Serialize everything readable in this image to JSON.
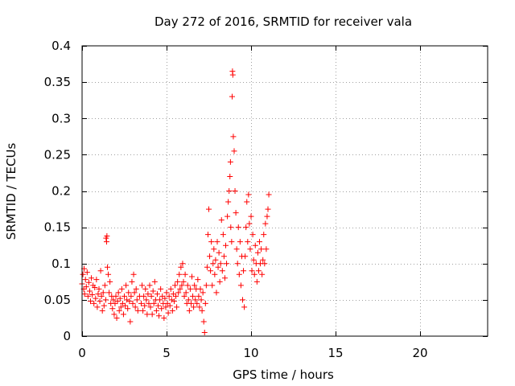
{
  "chart_data": {
    "type": "scatter",
    "title": "Day 272 of 2016, SRMTID for receiver vala",
    "xlabel": "GPS time / hours",
    "ylabel": "SRMTID / TECUs",
    "xlim": [
      0,
      24
    ],
    "ylim": [
      0,
      0.4
    ],
    "x_ticks": [
      0,
      5,
      10,
      15,
      20
    ],
    "x_tick_labels": [
      "0",
      "5",
      "10",
      "15",
      "20"
    ],
    "y_ticks": [
      0,
      0.05,
      0.1,
      0.15,
      0.2,
      0.25,
      0.3,
      0.35,
      0.4
    ],
    "y_tick_labels": [
      "0",
      "0.05",
      "0.1",
      "0.15",
      "0.2",
      "0.25",
      "0.3",
      "0.35",
      "0.4"
    ],
    "grid": true,
    "marker": "+",
    "color": "#ff0000",
    "series": [
      {
        "name": "SRMTID",
        "points": [
          [
            0.0,
            0.072
          ],
          [
            0.05,
            0.085
          ],
          [
            0.1,
            0.065
          ],
          [
            0.12,
            0.093
          ],
          [
            0.15,
            0.058
          ],
          [
            0.2,
            0.078
          ],
          [
            0.25,
            0.068
          ],
          [
            0.3,
            0.088
          ],
          [
            0.35,
            0.055
          ],
          [
            0.4,
            0.074
          ],
          [
            0.45,
            0.062
          ],
          [
            0.5,
            0.048
          ],
          [
            0.55,
            0.08
          ],
          [
            0.6,
            0.057
          ],
          [
            0.65,
            0.07
          ],
          [
            0.7,
            0.045
          ],
          [
            0.75,
            0.067
          ],
          [
            0.8,
            0.052
          ],
          [
            0.85,
            0.078
          ],
          [
            0.9,
            0.04
          ],
          [
            0.95,
            0.058
          ],
          [
            1.0,
            0.065
          ],
          [
            1.05,
            0.048
          ],
          [
            1.1,
            0.09
          ],
          [
            1.15,
            0.055
          ],
          [
            1.2,
            0.035
          ],
          [
            1.25,
            0.06
          ],
          [
            1.3,
            0.042
          ],
          [
            1.35,
            0.07
          ],
          [
            1.4,
            0.05
          ],
          [
            1.42,
            0.135
          ],
          [
            1.45,
            0.13
          ],
          [
            1.47,
            0.138
          ],
          [
            1.5,
            0.095
          ],
          [
            1.55,
            0.085
          ],
          [
            1.6,
            0.06
          ],
          [
            1.65,
            0.075
          ],
          [
            1.7,
            0.045
          ],
          [
            1.75,
            0.055
          ],
          [
            1.8,
            0.038
          ],
          [
            1.85,
            0.05
          ],
          [
            1.9,
            0.03
          ],
          [
            1.95,
            0.045
          ],
          [
            2.0,
            0.055
          ],
          [
            2.05,
            0.025
          ],
          [
            2.1,
            0.048
          ],
          [
            2.15,
            0.06
          ],
          [
            2.2,
            0.035
          ],
          [
            2.25,
            0.052
          ],
          [
            2.3,
            0.04
          ],
          [
            2.35,
            0.065
          ],
          [
            2.4,
            0.045
          ],
          [
            2.45,
            0.03
          ],
          [
            2.5,
            0.055
          ],
          [
            2.55,
            0.042
          ],
          [
            2.6,
            0.07
          ],
          [
            2.65,
            0.05
          ],
          [
            2.7,
            0.038
          ],
          [
            2.75,
            0.06
          ],
          [
            2.8,
            0.048
          ],
          [
            2.85,
            0.02
          ],
          [
            2.9,
            0.055
          ],
          [
            2.95,
            0.075
          ],
          [
            3.0,
            0.045
          ],
          [
            3.05,
            0.085
          ],
          [
            3.1,
            0.06
          ],
          [
            3.15,
            0.04
          ],
          [
            3.2,
            0.065
          ],
          [
            3.25,
            0.05
          ],
          [
            3.3,
            0.035
          ],
          [
            3.4,
            0.055
          ],
          [
            3.5,
            0.045
          ],
          [
            3.55,
            0.07
          ],
          [
            3.6,
            0.035
          ],
          [
            3.65,
            0.055
          ],
          [
            3.7,
            0.042
          ],
          [
            3.75,
            0.065
          ],
          [
            3.8,
            0.05
          ],
          [
            3.85,
            0.03
          ],
          [
            3.9,
            0.058
          ],
          [
            3.95,
            0.045
          ],
          [
            4.0,
            0.07
          ],
          [
            4.05,
            0.04
          ],
          [
            4.1,
            0.055
          ],
          [
            4.15,
            0.03
          ],
          [
            4.2,
            0.062
          ],
          [
            4.25,
            0.045
          ],
          [
            4.3,
            0.075
          ],
          [
            4.35,
            0.05
          ],
          [
            4.4,
            0.035
          ],
          [
            4.45,
            0.058
          ],
          [
            4.5,
            0.042
          ],
          [
            4.55,
            0.028
          ],
          [
            4.6,
            0.05
          ],
          [
            4.65,
            0.065
          ],
          [
            4.7,
            0.038
          ],
          [
            4.75,
            0.055
          ],
          [
            4.8,
            0.045
          ],
          [
            4.85,
            0.025
          ],
          [
            4.9,
            0.052
          ],
          [
            4.95,
            0.04
          ],
          [
            5.0,
            0.06
          ],
          [
            5.05,
            0.045
          ],
          [
            5.1,
            0.032
          ],
          [
            5.15,
            0.055
          ],
          [
            5.2,
            0.042
          ],
          [
            5.25,
            0.065
          ],
          [
            5.3,
            0.05
          ],
          [
            5.35,
            0.035
          ],
          [
            5.4,
            0.058
          ],
          [
            5.45,
            0.048
          ],
          [
            5.5,
            0.07
          ],
          [
            5.55,
            0.055
          ],
          [
            5.6,
            0.04
          ],
          [
            5.65,
            0.075
          ],
          [
            5.7,
            0.06
          ],
          [
            5.75,
            0.085
          ],
          [
            5.8,
            0.065
          ],
          [
            5.85,
            0.095
          ],
          [
            5.9,
            0.07
          ],
          [
            5.95,
            0.1
          ],
          [
            6.0,
            0.075
          ],
          [
            6.05,
            0.055
          ],
          [
            6.1,
            0.085
          ],
          [
            6.15,
            0.06
          ],
          [
            6.2,
            0.045
          ],
          [
            6.25,
            0.07
          ],
          [
            6.3,
            0.05
          ],
          [
            6.35,
            0.035
          ],
          [
            6.4,
            0.065
          ],
          [
            6.45,
            0.045
          ],
          [
            6.5,
            0.082
          ],
          [
            6.55,
            0.055
          ],
          [
            6.6,
            0.04
          ],
          [
            6.65,
            0.07
          ],
          [
            6.7,
            0.05
          ],
          [
            6.75,
            0.065
          ],
          [
            6.8,
            0.045
          ],
          [
            6.85,
            0.078
          ],
          [
            6.9,
            0.055
          ],
          [
            6.95,
            0.04
          ],
          [
            7.0,
            0.065
          ],
          [
            7.05,
            0.05
          ],
          [
            7.1,
            0.035
          ],
          [
            7.15,
            0.06
          ],
          [
            7.2,
            0.02
          ],
          [
            7.25,
            0.005
          ],
          [
            7.3,
            0.045
          ],
          [
            7.35,
            0.07
          ],
          [
            7.4,
            0.095
          ],
          [
            7.45,
            0.14
          ],
          [
            7.5,
            0.175
          ],
          [
            7.55,
            0.11
          ],
          [
            7.6,
            0.09
          ],
          [
            7.65,
            0.13
          ],
          [
            7.7,
            0.07
          ],
          [
            7.75,
            0.1
          ],
          [
            7.8,
            0.12
          ],
          [
            7.85,
            0.085
          ],
          [
            7.9,
            0.105
          ],
          [
            7.95,
            0.06
          ],
          [
            8.0,
            0.13
          ],
          [
            8.05,
            0.095
          ],
          [
            8.1,
            0.115
          ],
          [
            8.15,
            0.075
          ],
          [
            8.2,
            0.1
          ],
          [
            8.25,
            0.16
          ],
          [
            8.3,
            0.09
          ],
          [
            8.35,
            0.14
          ],
          [
            8.4,
            0.11
          ],
          [
            8.45,
            0.08
          ],
          [
            8.5,
            0.125
          ],
          [
            8.55,
            0.1
          ],
          [
            8.6,
            0.165
          ],
          [
            8.65,
            0.185
          ],
          [
            8.7,
            0.2
          ],
          [
            8.75,
            0.22
          ],
          [
            8.78,
            0.24
          ],
          [
            8.8,
            0.15
          ],
          [
            8.85,
            0.13
          ],
          [
            8.88,
            0.33
          ],
          [
            8.9,
            0.365
          ],
          [
            8.92,
            0.36
          ],
          [
            8.95,
            0.275
          ],
          [
            9.0,
            0.255
          ],
          [
            9.05,
            0.2
          ],
          [
            9.1,
            0.17
          ],
          [
            9.15,
            0.12
          ],
          [
            9.2,
            0.1
          ],
          [
            9.25,
            0.15
          ],
          [
            9.3,
            0.085
          ],
          [
            9.35,
            0.13
          ],
          [
            9.4,
            0.07
          ],
          [
            9.45,
            0.11
          ],
          [
            9.5,
            0.05
          ],
          [
            9.55,
            0.09
          ],
          [
            9.6,
            0.04
          ],
          [
            9.65,
            0.11
          ],
          [
            9.7,
            0.15
          ],
          [
            9.75,
            0.185
          ],
          [
            9.8,
            0.13
          ],
          [
            9.85,
            0.195
          ],
          [
            9.9,
            0.155
          ],
          [
            9.95,
            0.12
          ],
          [
            10.0,
            0.165
          ],
          [
            10.05,
            0.09
          ],
          [
            10.1,
            0.14
          ],
          [
            10.15,
            0.105
          ],
          [
            10.2,
            0.085
          ],
          [
            10.25,
            0.125
          ],
          [
            10.3,
            0.1
          ],
          [
            10.35,
            0.075
          ],
          [
            10.4,
            0.115
          ],
          [
            10.45,
            0.09
          ],
          [
            10.5,
            0.13
          ],
          [
            10.55,
            0.1
          ],
          [
            10.6,
            0.12
          ],
          [
            10.65,
            0.085
          ],
          [
            10.7,
            0.105
          ],
          [
            10.75,
            0.14
          ],
          [
            10.8,
            0.1
          ],
          [
            10.85,
            0.155
          ],
          [
            10.9,
            0.12
          ],
          [
            10.95,
            0.165
          ],
          [
            11.0,
            0.175
          ],
          [
            11.05,
            0.195
          ]
        ]
      }
    ]
  }
}
